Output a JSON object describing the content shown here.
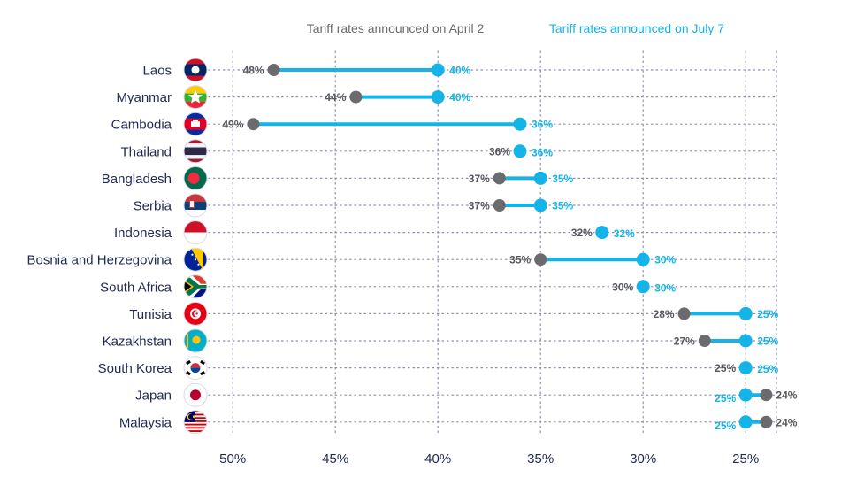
{
  "legend": {
    "april": "Tariff rates announced on April 2",
    "july": "Tariff rates announced on July 7"
  },
  "colors": {
    "april": "#6b6b6f",
    "july": "#14b4e8",
    "text": "#1f2a55",
    "grid": "#8a8fb0"
  },
  "chart_data": {
    "type": "dumbbell",
    "xlim": [
      51,
      23.5
    ],
    "xticks": [
      50,
      45,
      40,
      35,
      30,
      25
    ],
    "xtick_labels": [
      "50%",
      "45%",
      "40%",
      "35%",
      "30%",
      "25%"
    ],
    "grid": true,
    "categories": [
      "Laos",
      "Myanmar",
      "Cambodia",
      "Thailand",
      "Bangladesh",
      "Serbia",
      "Indonesia",
      "Bosnia and Herzegovina",
      "South Africa",
      "Tunisia",
      "Kazakhstan",
      "South Korea",
      "Japan",
      "Malaysia"
    ],
    "series": [
      {
        "name": "Tariff rates announced on April 2",
        "values": [
          48,
          44,
          49,
          36,
          37,
          37,
          32,
          35,
          30,
          28,
          27,
          25,
          24,
          24
        ],
        "labels": [
          "48%",
          "44%",
          "49%",
          "36%",
          "37%",
          "37%",
          "32%",
          "35%",
          "30%",
          "28%",
          "27%",
          "25%",
          "24%",
          "24%"
        ]
      },
      {
        "name": "Tariff rates announced on July 7",
        "values": [
          40,
          40,
          36,
          36,
          35,
          35,
          32,
          30,
          30,
          25,
          25,
          25,
          25,
          25
        ],
        "labels": [
          "40%",
          "40%",
          "36%",
          "36%",
          "35%",
          "35%",
          "32%",
          "30%",
          "30%",
          "25%",
          "25%",
          "25%",
          "25%",
          "25%"
        ]
      }
    ],
    "flags": [
      "laos-flag-icon",
      "myanmar-flag-icon",
      "cambodia-flag-icon",
      "thailand-flag-icon",
      "bangladesh-flag-icon",
      "serbia-flag-icon",
      "indonesia-flag-icon",
      "bosnia-and-herzegovina-flag-icon",
      "south-africa-flag-icon",
      "tunisia-flag-icon",
      "kazakhstan-flag-icon",
      "south-korea-flag-icon",
      "japan-flag-icon",
      "malaysia-flag-icon"
    ]
  }
}
